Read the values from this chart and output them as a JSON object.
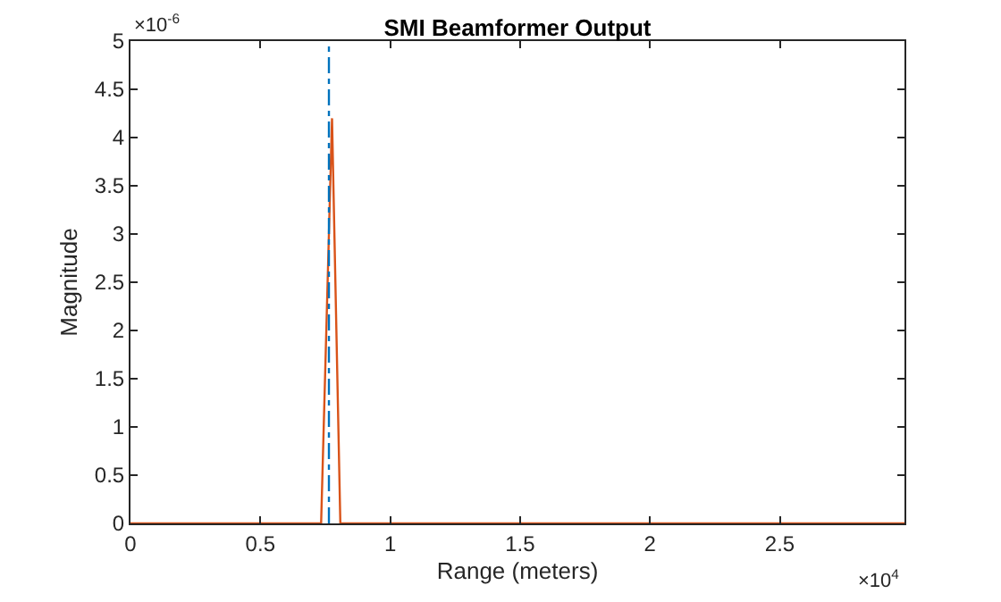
{
  "chart_data": {
    "type": "line",
    "title": "SMI Beamformer Output",
    "xlabel": "Range (meters)",
    "ylabel": "Magnitude",
    "x": [
      0,
      0.2,
      0.4,
      0.6,
      0.7,
      0.734,
      0.776,
      0.808,
      0.9,
      1.1,
      1.3,
      1.5,
      1.7,
      1.9,
      2.1,
      2.3,
      2.5,
      2.7,
      2.98
    ],
    "series": [
      {
        "color": "#d95319",
        "values": [
          0,
          0,
          0,
          0,
          0,
          0,
          4.2,
          0,
          0,
          0,
          0,
          0,
          0,
          0,
          0,
          0,
          0,
          0,
          0
        ]
      }
    ],
    "ref_lines": [
      {
        "axis": "x",
        "value": 0.764,
        "color": "#0072bd",
        "line_style": "dashdot"
      }
    ],
    "xlim": [
      0,
      2.98
    ],
    "xticks": [
      0,
      0.5,
      1,
      1.5,
      2,
      2.5
    ],
    "ylim": [
      0,
      5
    ],
    "yticks": [
      0,
      0.5,
      1,
      1.5,
      2,
      2.5,
      3,
      3.5,
      4,
      4.5,
      5
    ],
    "annotations": [
      "×10$^{-6}$",
      "×10$^{4}$"
    ]
  }
}
